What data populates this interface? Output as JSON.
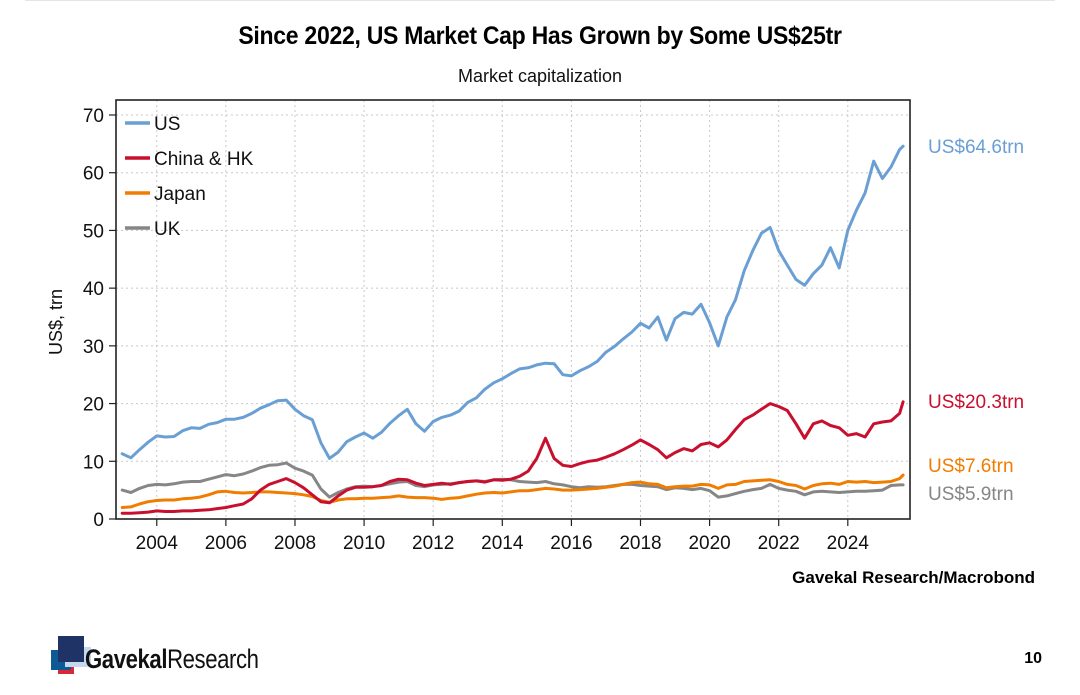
{
  "slide": {
    "page_number": "10",
    "source": "Gavekal Research/Macrobond",
    "logo": {
      "brand_bold": "Gavekal",
      "brand_regular": "Research"
    },
    "footer_bar_colors": [
      "#c4d6e9",
      "#0d5a95",
      "#c8102e",
      "#1f3366"
    ]
  },
  "chart_data": {
    "type": "line",
    "title": "Since 2022, US Market Cap Has Grown by Some US$25tr",
    "subtitle": "Market capitalization",
    "xlabel": "",
    "ylabel": "US$, trn",
    "xlim": [
      2002.82,
      2025.8
    ],
    "ylim": [
      0,
      70
    ],
    "x_ticks": [
      2004,
      2006,
      2008,
      2010,
      2012,
      2014,
      2016,
      2018,
      2020,
      2022,
      2024
    ],
    "x_tick_labels": [
      "2004",
      "2006",
      "2008",
      "2010",
      "2012",
      "2014",
      "2016",
      "2018",
      "2020",
      "2022",
      "2024"
    ],
    "y_ticks": [
      0,
      10,
      20,
      30,
      40,
      50,
      60,
      70
    ],
    "y_tick_labels": [
      "0",
      "10",
      "20",
      "30",
      "40",
      "50",
      "60",
      "70"
    ],
    "grid": true,
    "legend_position": "top-left",
    "x": [
      2003.0,
      2003.25,
      2003.5,
      2003.75,
      2004.0,
      2004.25,
      2004.5,
      2004.75,
      2005.0,
      2005.25,
      2005.5,
      2005.75,
      2006.0,
      2006.25,
      2006.5,
      2006.75,
      2007.0,
      2007.25,
      2007.5,
      2007.75,
      2008.0,
      2008.25,
      2008.5,
      2008.75,
      2009.0,
      2009.25,
      2009.5,
      2009.75,
      2010.0,
      2010.25,
      2010.5,
      2010.75,
      2011.0,
      2011.25,
      2011.5,
      2011.75,
      2012.0,
      2012.25,
      2012.5,
      2012.75,
      2013.0,
      2013.25,
      2013.5,
      2013.75,
      2014.0,
      2014.25,
      2014.5,
      2014.75,
      2015.0,
      2015.25,
      2015.5,
      2015.75,
      2016.0,
      2016.25,
      2016.5,
      2016.75,
      2017.0,
      2017.25,
      2017.5,
      2017.75,
      2018.0,
      2018.25,
      2018.5,
      2018.75,
      2019.0,
      2019.25,
      2019.5,
      2019.75,
      2020.0,
      2020.25,
      2020.5,
      2020.75,
      2021.0,
      2021.25,
      2021.5,
      2021.75,
      2022.0,
      2022.25,
      2022.5,
      2022.75,
      2023.0,
      2023.25,
      2023.5,
      2023.75,
      2024.0,
      2024.25,
      2024.5,
      2024.75,
      2025.0,
      2025.25,
      2025.5,
      2025.6
    ],
    "series": [
      {
        "name": "US",
        "color": "#6a9fd4",
        "end_label": "US$64.6trn",
        "values": [
          11.3,
          10.6,
          12.0,
          13.3,
          14.4,
          14.2,
          14.3,
          15.3,
          15.8,
          15.7,
          16.4,
          16.7,
          17.3,
          17.3,
          17.6,
          18.3,
          19.2,
          19.8,
          20.5,
          20.6,
          19.0,
          17.9,
          17.2,
          13.2,
          10.5,
          11.6,
          13.4,
          14.2,
          14.9,
          14.0,
          15.0,
          16.6,
          17.9,
          19.0,
          16.5,
          15.2,
          16.9,
          17.6,
          18.0,
          18.7,
          20.2,
          21.0,
          22.5,
          23.6,
          24.3,
          25.2,
          26.0,
          26.2,
          26.7,
          27.0,
          26.9,
          25.0,
          24.8,
          25.7,
          26.4,
          27.3,
          28.9,
          29.9,
          31.2,
          32.4,
          33.9,
          33.1,
          35.0,
          31.0,
          34.7,
          35.8,
          35.5,
          37.2,
          34.0,
          30.0,
          35.0,
          38.0,
          43.0,
          46.5,
          49.5,
          50.5,
          46.5,
          44.0,
          41.5,
          40.5,
          42.5,
          44.0,
          47.0,
          43.5,
          50.0,
          53.5,
          56.5,
          62.0,
          59.0,
          61.0,
          64.0,
          64.6
        ]
      },
      {
        "name": "China & HK",
        "color": "#c8102e",
        "end_label": "US$20.3trn",
        "values": [
          1.0,
          1.0,
          1.1,
          1.2,
          1.4,
          1.3,
          1.3,
          1.4,
          1.4,
          1.5,
          1.6,
          1.8,
          2.0,
          2.3,
          2.6,
          3.5,
          5.0,
          6.0,
          6.5,
          7.0,
          6.3,
          5.4,
          4.2,
          3.0,
          2.8,
          4.0,
          5.0,
          5.5,
          5.5,
          5.6,
          5.8,
          6.5,
          6.9,
          6.8,
          6.2,
          5.8,
          6.0,
          6.2,
          6.0,
          6.3,
          6.5,
          6.6,
          6.4,
          6.8,
          6.7,
          6.9,
          7.4,
          8.3,
          10.5,
          14.0,
          10.5,
          9.3,
          9.1,
          9.6,
          10.0,
          10.2,
          10.7,
          11.3,
          12.0,
          12.8,
          13.7,
          12.9,
          12.0,
          10.6,
          11.5,
          12.2,
          11.8,
          12.9,
          13.2,
          12.5,
          13.7,
          15.5,
          17.2,
          18.0,
          19.0,
          20.0,
          19.5,
          18.8,
          16.5,
          14.0,
          16.5,
          17.0,
          16.2,
          15.8,
          14.5,
          14.8,
          14.2,
          16.5,
          16.8,
          17.0,
          18.3,
          20.3
        ]
      },
      {
        "name": "Japan",
        "color": "#f07d00",
        "end_label": "US$7.6trn",
        "values": [
          2.0,
          2.1,
          2.6,
          3.0,
          3.2,
          3.3,
          3.3,
          3.5,
          3.6,
          3.8,
          4.2,
          4.7,
          4.8,
          4.6,
          4.5,
          4.6,
          4.7,
          4.7,
          4.6,
          4.5,
          4.4,
          4.2,
          3.9,
          3.2,
          2.9,
          3.3,
          3.5,
          3.5,
          3.6,
          3.6,
          3.7,
          3.8,
          4.0,
          3.8,
          3.7,
          3.7,
          3.6,
          3.4,
          3.6,
          3.7,
          4.0,
          4.3,
          4.5,
          4.6,
          4.5,
          4.7,
          4.9,
          4.9,
          5.1,
          5.3,
          5.2,
          5.0,
          5.0,
          5.1,
          5.2,
          5.3,
          5.5,
          5.7,
          6.0,
          6.3,
          6.4,
          6.1,
          6.0,
          5.4,
          5.6,
          5.7,
          5.7,
          6.0,
          5.9,
          5.3,
          5.9,
          6.0,
          6.5,
          6.6,
          6.7,
          6.8,
          6.5,
          6.0,
          5.8,
          5.2,
          5.8,
          6.1,
          6.2,
          6.0,
          6.5,
          6.4,
          6.5,
          6.3,
          6.4,
          6.5,
          7.0,
          7.6
        ]
      },
      {
        "name": "UK",
        "color": "#868686",
        "end_label": "US$5.9trn",
        "values": [
          5.0,
          4.6,
          5.3,
          5.8,
          6.0,
          5.9,
          6.1,
          6.4,
          6.5,
          6.5,
          6.9,
          7.3,
          7.7,
          7.5,
          7.8,
          8.3,
          8.9,
          9.3,
          9.4,
          9.7,
          8.8,
          8.3,
          7.6,
          5.2,
          3.8,
          4.6,
          5.2,
          5.6,
          5.7,
          5.6,
          5.8,
          6.1,
          6.4,
          6.5,
          5.8,
          5.6,
          5.9,
          6.0,
          6.1,
          6.3,
          6.5,
          6.6,
          6.5,
          6.8,
          6.9,
          6.8,
          6.5,
          6.4,
          6.3,
          6.5,
          6.1,
          5.9,
          5.6,
          5.4,
          5.6,
          5.5,
          5.6,
          5.8,
          6.0,
          6.0,
          5.8,
          5.7,
          5.6,
          5.1,
          5.4,
          5.3,
          5.1,
          5.3,
          4.9,
          3.8,
          4.0,
          4.4,
          4.8,
          5.1,
          5.3,
          6.0,
          5.3,
          5.0,
          4.8,
          4.2,
          4.7,
          4.8,
          4.7,
          4.6,
          4.7,
          4.8,
          4.8,
          4.9,
          5.0,
          5.8,
          5.9,
          5.9
        ]
      }
    ]
  }
}
